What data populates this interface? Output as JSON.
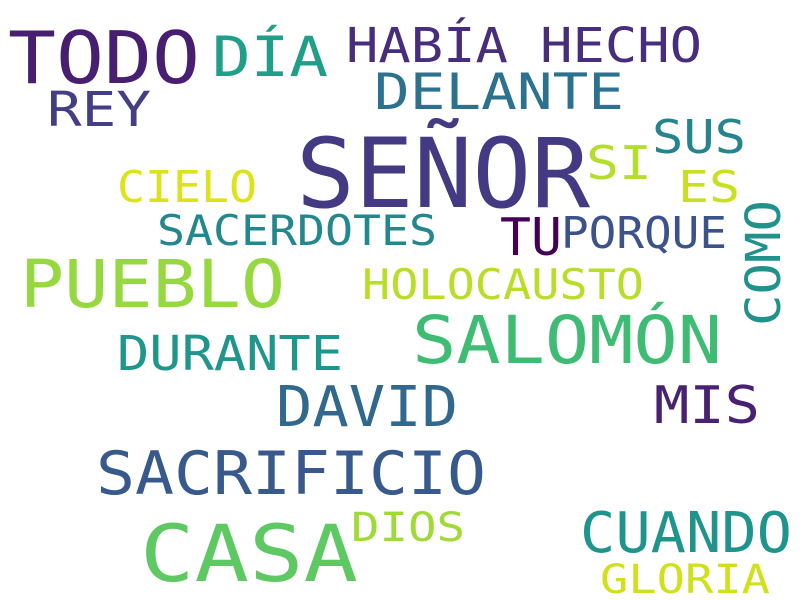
{
  "words": [
    {
      "text": "TODO",
      "color": "#481f70"
    },
    {
      "text": "DÍA",
      "color": "#1f9e89"
    },
    {
      "text": "HABÍA HECHO",
      "color": "#472d7b"
    },
    {
      "text": "DELANTE",
      "color": "#2c728e"
    },
    {
      "text": "REY",
      "color": "#433e85"
    },
    {
      "text": "SEÑOR",
      "color": "#443983"
    },
    {
      "text": "SI",
      "color": "#b5de2b"
    },
    {
      "text": "SUS",
      "color": "#25848e"
    },
    {
      "text": "CIELO",
      "color": "#dde318"
    },
    {
      "text": "ES",
      "color": "#c8e020"
    },
    {
      "text": "SACERDOTES",
      "color": "#23888e"
    },
    {
      "text": "TU",
      "color": "#440154"
    },
    {
      "text": "PORQUE",
      "color": "#3b528b"
    },
    {
      "text": "COMO",
      "color": "#21918c"
    },
    {
      "text": "PUEBLO",
      "color": "#95d840"
    },
    {
      "text": "HOLOCAUSTO",
      "color": "#b8de29"
    },
    {
      "text": "SALOMÓN",
      "color": "#3fbc73"
    },
    {
      "text": "DURANTE",
      "color": "#1f968b"
    },
    {
      "text": "DAVID",
      "color": "#31688e"
    },
    {
      "text": "MIS",
      "color": "#482173"
    },
    {
      "text": "SACRIFICIO",
      "color": "#38598c"
    },
    {
      "text": "CASA",
      "color": "#5ec962"
    },
    {
      "text": "DIOS",
      "color": "#a0da39"
    },
    {
      "text": "CUANDO",
      "color": "#1f948c"
    },
    {
      "text": "GLORIA",
      "color": "#d0e11c"
    }
  ]
}
